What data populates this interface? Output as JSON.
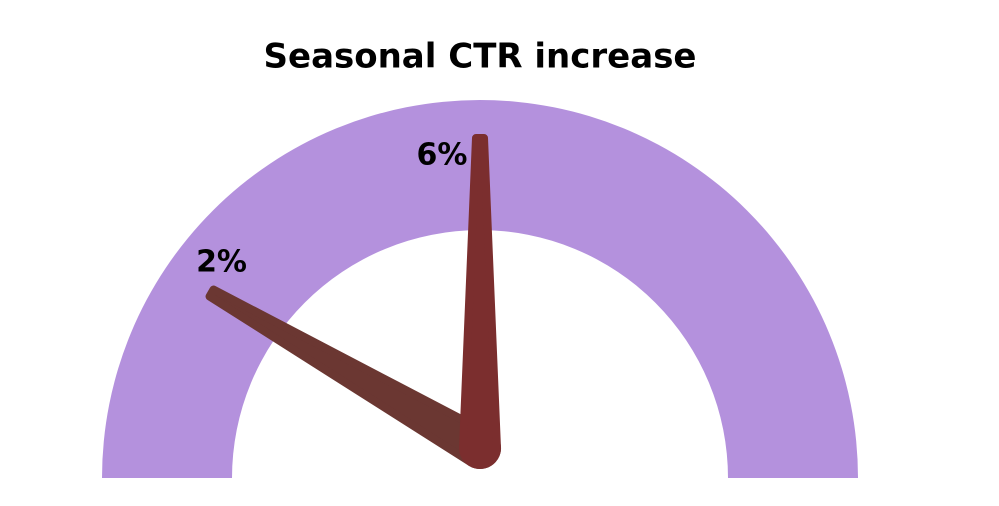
{
  "chart_data": {
    "type": "gauge",
    "title": "Seasonal CTR increase",
    "values": [
      2,
      6
    ],
    "value_labels": [
      "2%",
      "6%"
    ],
    "colors": [
      "#6b3732",
      "#7b2e2e"
    ],
    "color": "#b491dd",
    "ylim": [
      0,
      12
    ]
  }
}
